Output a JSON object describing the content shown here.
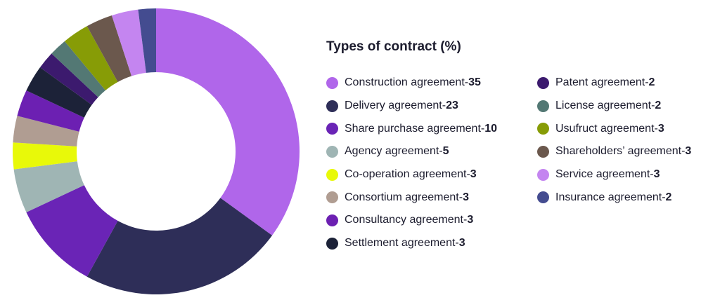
{
  "chart_data": {
    "type": "pie",
    "style": "donut",
    "title": "Types of contract (%)",
    "legend_position": "right",
    "slices": [
      {
        "label": "Construction agreement",
        "value": 35,
        "color": "#b066ea"
      },
      {
        "label": "Delivery agreement",
        "value": 23,
        "color": "#2e2e58"
      },
      {
        "label": "Share purchase agreement ",
        "value": 10,
        "color": "#6a24b6"
      },
      {
        "label": "Agency agreement",
        "value": 5,
        "color": "#9fb5b4"
      },
      {
        "label": "Co-operation agreement",
        "value": 3,
        "color": "#e8f909"
      },
      {
        "label": "Consortium agreement",
        "value": 3,
        "color": "#b09d92"
      },
      {
        "label": "Consultancy agreement",
        "value": 3,
        "color": "#6c20b2"
      },
      {
        "label": "Settlement agreement",
        "value": 3,
        "color": "#1c2238"
      },
      {
        "label": "Patent agreement",
        "value": 2,
        "color": "#3c1a6e"
      },
      {
        "label": "License agreement",
        "value": 2,
        "color": "#537874"
      },
      {
        "label": "Usufruct agreement",
        "value": 3,
        "color": "#879c06"
      },
      {
        "label": "Shareholders’ agreement",
        "value": 3,
        "color": "#6b584d"
      },
      {
        "label": "Service agreement",
        "value": 3,
        "color": "#c485f0"
      },
      {
        "label": "Insurance agreement",
        "value": 2,
        "color": "#444c90"
      }
    ],
    "separator": " - "
  }
}
